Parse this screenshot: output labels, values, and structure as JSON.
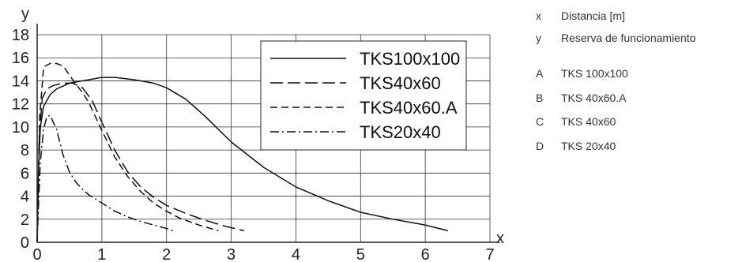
{
  "chart_data": {
    "type": "line",
    "xlabel": "x",
    "ylabel": "y",
    "xlim": [
      0,
      7
    ],
    "ylim": [
      0,
      18
    ],
    "xticks": [
      0,
      1,
      2,
      3,
      4,
      5,
      6,
      7
    ],
    "yticks": [
      0,
      2,
      4,
      6,
      8,
      10,
      12,
      14,
      16,
      18
    ],
    "grid": true,
    "legend_position": "top-right",
    "series": [
      {
        "name": "TKS100x100",
        "style": "solid",
        "x": [
          0,
          0.02,
          0.05,
          0.1,
          0.2,
          0.3,
          0.5,
          0.8,
          1.0,
          1.2,
          1.5,
          1.8,
          2.0,
          2.3,
          2.6,
          3.0,
          3.5,
          4.0,
          4.5,
          5.0,
          5.5,
          6.0,
          6.35
        ],
        "y": [
          0,
          6,
          10,
          11.8,
          12.8,
          13.3,
          13.8,
          14.1,
          14.3,
          14.3,
          14.1,
          13.8,
          13.4,
          12.4,
          10.9,
          8.7,
          6.5,
          4.8,
          3.6,
          2.6,
          2.0,
          1.5,
          1.0
        ]
      },
      {
        "name": "TKS40x60",
        "style": "long-dash",
        "x": [
          0,
          0.03,
          0.08,
          0.15,
          0.25,
          0.4,
          0.55,
          0.7,
          0.85,
          1.0,
          1.2,
          1.4,
          1.6,
          1.8,
          2.0,
          2.3,
          2.6,
          2.9,
          3.2
        ],
        "y": [
          0,
          9,
          12.5,
          13.3,
          13.6,
          13.8,
          13.8,
          13.4,
          12.3,
          10.4,
          8.0,
          6.1,
          4.8,
          3.9,
          3.2,
          2.5,
          1.9,
          1.4,
          1.0
        ]
      },
      {
        "name": "TKS40x60.A",
        "style": "dash",
        "x": [
          0,
          0.04,
          0.1,
          0.2,
          0.3,
          0.4,
          0.5,
          0.6,
          0.7,
          0.8,
          0.9,
          1.0,
          1.2,
          1.4,
          1.6,
          1.8,
          2.0,
          2.2,
          2.5,
          2.8
        ],
        "y": [
          0,
          11,
          15.2,
          15.5,
          15.5,
          15.3,
          14.5,
          13.7,
          13.0,
          12.1,
          10.9,
          9.7,
          7.4,
          5.7,
          4.4,
          3.4,
          2.7,
          2.1,
          1.5,
          1.0
        ]
      },
      {
        "name": "TKS20x40",
        "style": "dash-dot",
        "x": [
          0,
          0.02,
          0.05,
          0.1,
          0.15,
          0.2,
          0.3,
          0.4,
          0.5,
          0.6,
          0.7,
          0.8,
          1.0,
          1.2,
          1.4,
          1.6,
          1.8,
          2.0,
          2.1
        ],
        "y": [
          0,
          3,
          7,
          9.8,
          10.9,
          11.0,
          9.8,
          7.6,
          6.1,
          5.2,
          4.6,
          4.1,
          3.4,
          2.7,
          2.2,
          1.8,
          1.5,
          1.2,
          1.0
        ]
      }
    ]
  },
  "key": {
    "items": [
      {
        "letter": "x",
        "text": "Distancia [m]"
      },
      {
        "letter": "y",
        "text": "Reserva de funcionamiento"
      },
      {
        "letter": "A",
        "text": "TKS 100x100"
      },
      {
        "letter": "B",
        "text": "TKS 40x60.A"
      },
      {
        "letter": "C",
        "text": "TKS 40x60"
      },
      {
        "letter": "D",
        "text": "TKS 20x40"
      }
    ]
  }
}
